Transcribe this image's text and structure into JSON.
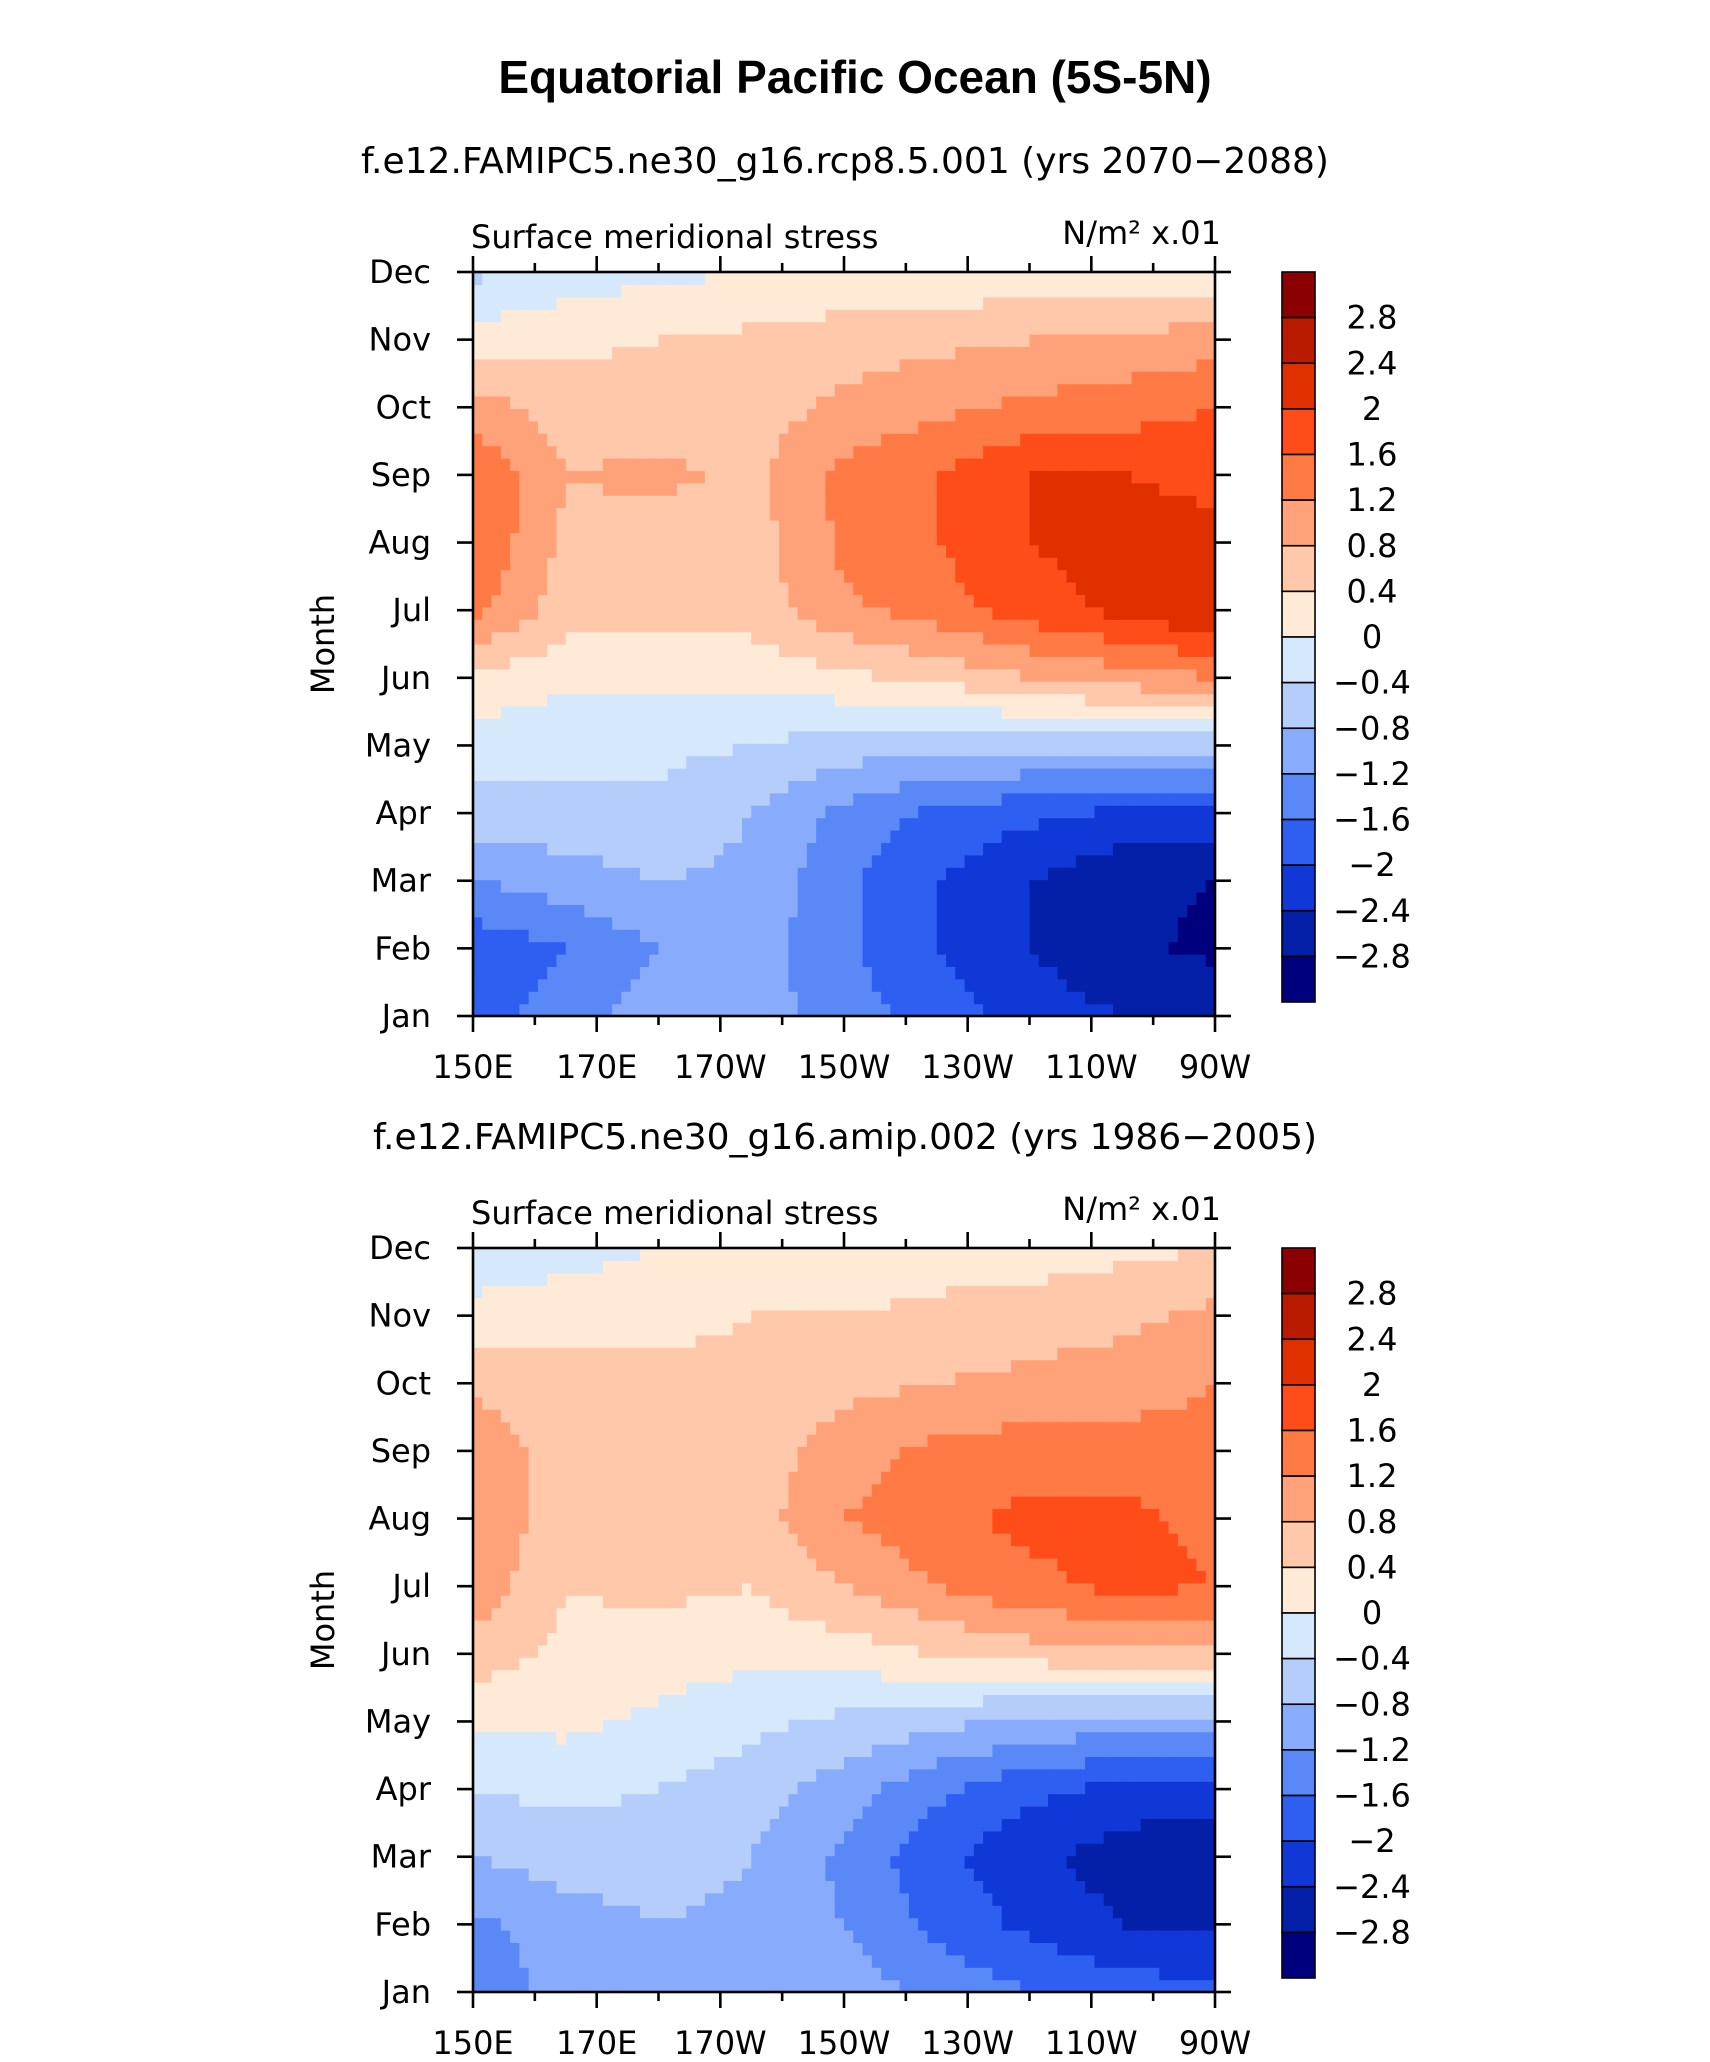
{
  "figure": {
    "title": "Equatorial Pacific Ocean (5S-5N)"
  },
  "colorbar": {
    "levels": [
      "2.8",
      "2.4",
      "2",
      "1.6",
      "1.2",
      "0.8",
      "0.4",
      "0",
      "−0.4",
      "−0.8",
      "−1.2",
      "−1.6",
      "−2",
      "−2.4",
      "−2.8"
    ],
    "colors": [
      "#8b0000",
      "#b81b00",
      "#e03000",
      "#ff4d1a",
      "#ff7a45",
      "#ffa27a",
      "#ffc8aa",
      "#ffead8",
      "#d6e8fc",
      "#b4cdfb",
      "#88acfb",
      "#5a88f7",
      "#2f5ff0",
      "#1038d6",
      "#0420a8",
      "#00007e"
    ]
  },
  "chart_data": [
    {
      "type": "heatmap",
      "title": "f.e12.FAMIPC5.ne30_g16.rcp8.5.001 (yrs 2070−2088)",
      "left_label": "Surface meridional stress",
      "right_label": "N/m² x.01",
      "ylabel": "Month",
      "xlabel": "",
      "x_ticks": [
        "150E",
        "170E",
        "170W",
        "150W",
        "130W",
        "110W",
        "90W"
      ],
      "y_ticks": [
        "Jan",
        "Feb",
        "Mar",
        "Apr",
        "May",
        "Jun",
        "Jul",
        "Aug",
        "Sep",
        "Oct",
        "Nov",
        "Dec"
      ],
      "x_range": [
        150,
        270
      ],
      "grid": false,
      "lon": [
        150,
        165,
        180,
        195,
        210,
        225,
        240,
        255,
        270
      ],
      "values": [
        [
          -1.8,
          -1.4,
          -1.0,
          -1.0,
          -1.4,
          -1.8,
          -2.2,
          -2.4,
          -2.4
        ],
        [
          -1.9,
          -1.6,
          -1.2,
          -1.0,
          -1.5,
          -2.0,
          -2.4,
          -2.7,
          -2.9
        ],
        [
          -1.2,
          -1.0,
          -0.8,
          -0.9,
          -1.5,
          -2.0,
          -2.4,
          -2.7,
          -2.8
        ],
        [
          -0.6,
          -0.5,
          -0.5,
          -0.8,
          -1.3,
          -1.7,
          -1.9,
          -2.1,
          -2.1
        ],
        [
          -0.2,
          -0.3,
          -0.3,
          -0.4,
          -0.6,
          -0.7,
          -0.7,
          -0.7,
          -0.7
        ],
        [
          0.3,
          0.1,
          0.1,
          0.1,
          0.3,
          0.5,
          0.8,
          1.0,
          1.2
        ],
        [
          1.3,
          0.6,
          0.6,
          0.6,
          1.1,
          1.4,
          1.8,
          2.1,
          2.4
        ],
        [
          1.6,
          0.7,
          0.6,
          0.6,
          1.3,
          1.6,
          2.0,
          2.2,
          2.1
        ],
        [
          1.6,
          0.8,
          0.9,
          0.7,
          1.3,
          1.6,
          2.0,
          2.0,
          1.9
        ],
        [
          1.0,
          0.6,
          0.6,
          0.6,
          0.9,
          1.1,
          1.3,
          1.4,
          1.6
        ],
        [
          0.2,
          0.3,
          0.4,
          0.5,
          0.6,
          0.7,
          0.8,
          0.9,
          1.0
        ],
        [
          -0.5,
          -0.2,
          -0.1,
          0.0,
          0.1,
          0.1,
          0.1,
          0.1,
          0.1
        ]
      ]
    },
    {
      "type": "heatmap",
      "title": "f.e12.FAMIPC5.ne30_g16.amip.002 (yrs 1986−2005)",
      "left_label": "Surface meridional stress",
      "right_label": "N/m² x.01",
      "ylabel": "Month",
      "xlabel": "",
      "x_ticks": [
        "150E",
        "170E",
        "170W",
        "150W",
        "130W",
        "110W",
        "90W"
      ],
      "y_ticks": [
        "Jan",
        "Feb",
        "Mar",
        "Apr",
        "May",
        "Jun",
        "Jul",
        "Aug",
        "Sep",
        "Oct",
        "Nov",
        "Dec"
      ],
      "x_range": [
        150,
        270
      ],
      "grid": false,
      "lon": [
        150,
        165,
        180,
        195,
        210,
        225,
        240,
        255,
        270
      ],
      "values": [
        [
          -1.4,
          -1.1,
          -0.9,
          -0.9,
          -1.0,
          -1.3,
          -1.6,
          -1.8,
          -1.9
        ],
        [
          -1.3,
          -1.0,
          -0.8,
          -0.9,
          -1.2,
          -1.7,
          -2.1,
          -2.4,
          -2.5
        ],
        [
          -0.8,
          -0.6,
          -0.6,
          -0.8,
          -1.3,
          -1.9,
          -2.3,
          -2.6,
          -2.8
        ],
        [
          -0.4,
          -0.3,
          -0.4,
          -0.6,
          -1.0,
          -1.5,
          -1.9,
          -2.1,
          -2.2
        ],
        [
          0.1,
          0.1,
          -0.1,
          -0.3,
          -0.5,
          -0.7,
          -0.9,
          -1.0,
          -1.0
        ],
        [
          0.6,
          0.3,
          0.2,
          0.1,
          0.2,
          0.4,
          0.6,
          0.7,
          0.7
        ],
        [
          1.1,
          0.4,
          0.5,
          0.4,
          0.8,
          1.2,
          1.5,
          1.7,
          1.6
        ],
        [
          1.2,
          0.5,
          0.6,
          0.6,
          1.2,
          1.5,
          1.7,
          1.7,
          1.5
        ],
        [
          1.1,
          0.6,
          0.6,
          0.6,
          1.0,
          1.3,
          1.4,
          1.4,
          1.3
        ],
        [
          0.7,
          0.5,
          0.5,
          0.5,
          0.7,
          0.8,
          0.9,
          1.0,
          1.2
        ],
        [
          0.2,
          0.3,
          0.3,
          0.4,
          0.4,
          0.5,
          0.6,
          0.7,
          0.9
        ],
        [
          -0.4,
          -0.2,
          0.0,
          0.1,
          0.1,
          0.2,
          0.2,
          0.3,
          0.4
        ]
      ]
    }
  ]
}
